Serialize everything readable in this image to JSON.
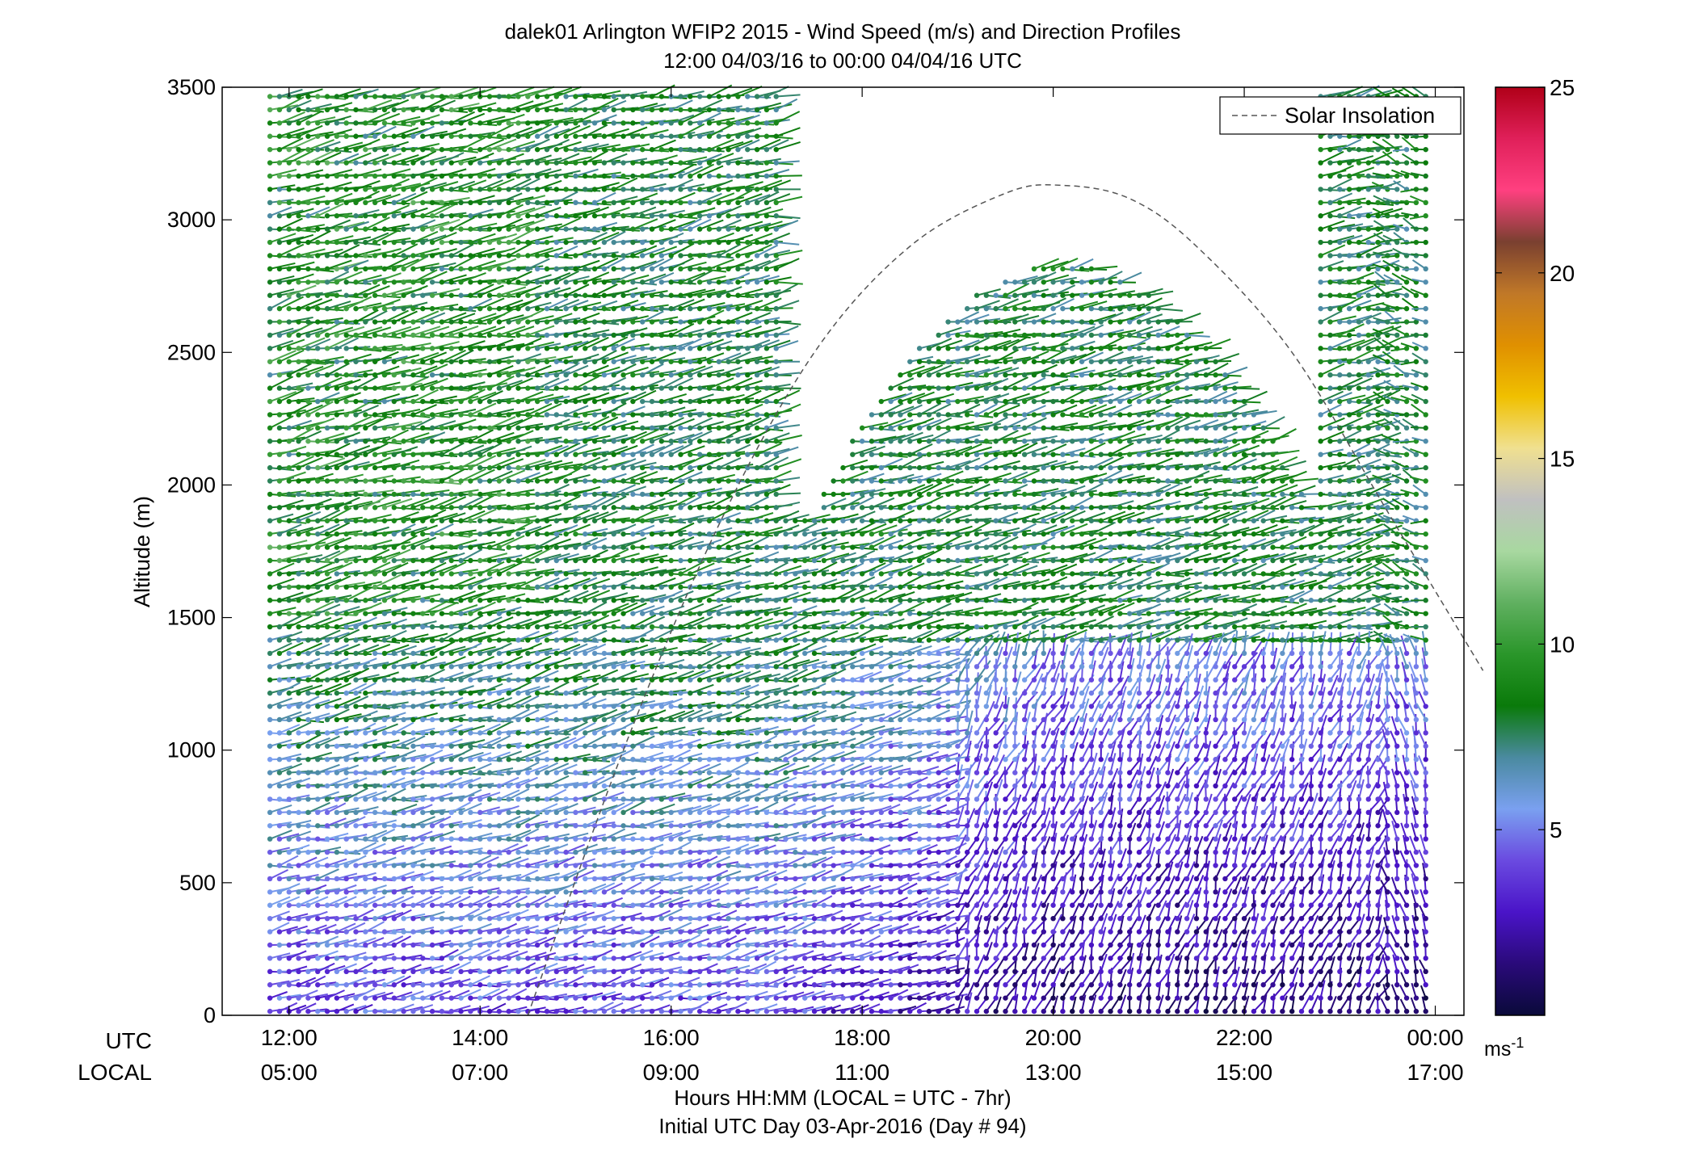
{
  "chart_data": {
    "type": "scatter",
    "title": "dalek01 Arlington WFIP2 2015 - Wind Speed (m/s) and Direction Profiles",
    "subtitle": "12:00 04/03/16 to 00:00 04/04/16  UTC",
    "ylabel": "Altitude (m)",
    "ylim": [
      0,
      3500
    ],
    "y_ticks": [
      "0",
      "500",
      "1000",
      "1500",
      "2000",
      "2500",
      "3000",
      "3500"
    ],
    "x_row_labels": {
      "utc": "UTC",
      "local": "LOCAL"
    },
    "x_hours_utc": [
      12,
      14,
      16,
      18,
      20,
      22,
      24
    ],
    "x_ticks_utc": [
      "12:00",
      "14:00",
      "16:00",
      "18:00",
      "20:00",
      "22:00",
      "00:00"
    ],
    "x_ticks_local": [
      "05:00",
      "07:00",
      "09:00",
      "11:00",
      "13:00",
      "15:00",
      "17:00"
    ],
    "xlim_hours_utc": [
      11.3,
      24.3
    ],
    "xlabel_line1": "Hours HH:MM  (LOCAL = UTC - 7hr)",
    "xlabel_line2": "Initial UTC Day 03-Apr-2016 (Day # 94)",
    "legend": {
      "entries": [
        "Solar Insolation"
      ],
      "position": "top-right"
    },
    "colorbar": {
      "ticks": [
        "5",
        "10",
        "15",
        "20",
        "25"
      ],
      "tick_values": [
        5,
        10,
        15,
        20,
        25
      ],
      "range": [
        0,
        25
      ],
      "unit_base": "ms",
      "unit_exp": "-1",
      "colors": [
        "#0a0a3a",
        "#2a0a7a",
        "#4a14c8",
        "#6a4ae0",
        "#7aa0f0",
        "#4a8aa0",
        "#0a7a0a",
        "#2a962a",
        "#60b060",
        "#a8d8a0",
        "#c0c0c0",
        "#f0e090",
        "#f0c000",
        "#e09000",
        "#c07828",
        "#7a4030",
        "#ff4080",
        "#e0205a",
        "#b00018"
      ]
    },
    "solar_insolation_curve": {
      "hours_utc": [
        14.5,
        15.5,
        16.5,
        17.5,
        18.5,
        19.5,
        20.1,
        20.8,
        21.5,
        22.5,
        23.5,
        24.5
      ],
      "altitude_m": [
        0,
        1000,
        1850,
        2500,
        2900,
        3100,
        3130,
        3080,
        2900,
        2500,
        1900,
        1300
      ]
    },
    "wind_profiles": {
      "first_hour_utc": 11.8,
      "last_hour_utc": 23.9,
      "step_hours": 0.1,
      "surface_wind_speed_ms": 4,
      "lower_layer_top_m": 1500,
      "upper_wind_speed_ms": 8,
      "data_top_m": 3500
    }
  }
}
